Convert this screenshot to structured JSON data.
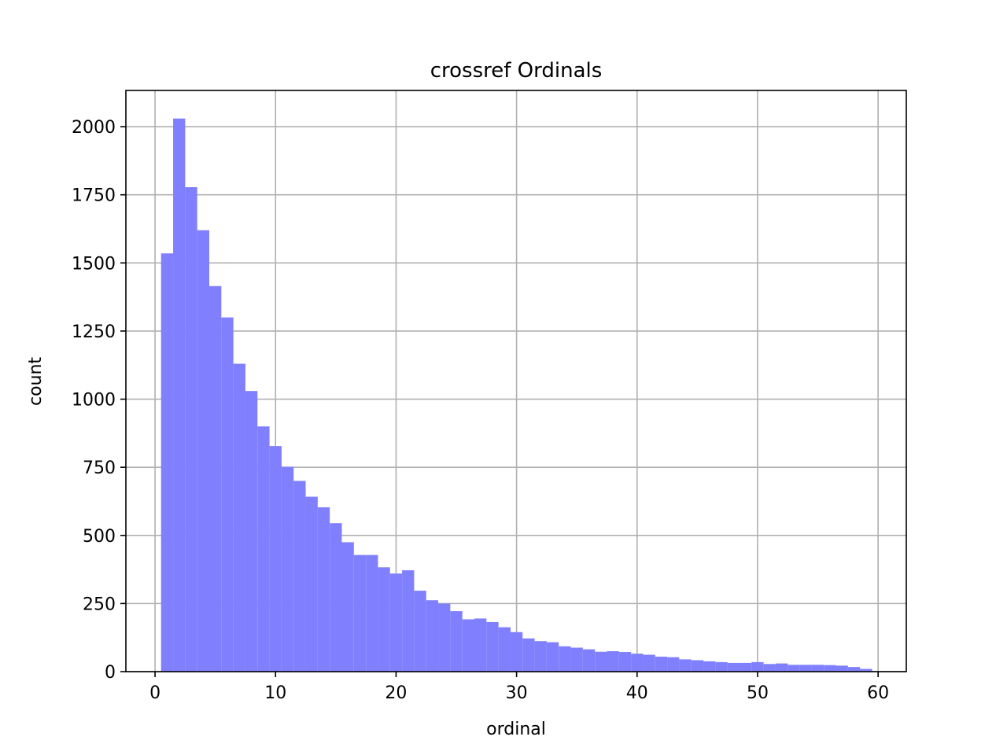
{
  "chart_data": {
    "type": "histogram",
    "title": "crossref Ordinals",
    "x_label": "ordinal",
    "y_label": "count",
    "bins": [
      0.5,
      1.5,
      2.5,
      3.5,
      4.5,
      5.5,
      6.5,
      7.5,
      8.5,
      9.5,
      10.5,
      11.5,
      12.5,
      13.5,
      14.5,
      15.5,
      16.5,
      17.5,
      18.5,
      19.5,
      20.5,
      21.5,
      22.5,
      23.5,
      24.5,
      25.5,
      26.5,
      27.5,
      28.5,
      29.5,
      30.5,
      31.5,
      32.5,
      33.5,
      34.5,
      35.5,
      36.5,
      37.5,
      38.5,
      39.5,
      40.5,
      41.5,
      42.5,
      43.5,
      44.5,
      45.5,
      46.5,
      47.5,
      48.5,
      49.5,
      50.5,
      51.5,
      52.5,
      53.5,
      54.5,
      55.5,
      56.5,
      57.5,
      58.5,
      59.5
    ],
    "values": [
      1535,
      2030,
      1778,
      1620,
      1415,
      1300,
      1130,
      1030,
      900,
      828,
      752,
      700,
      642,
      603,
      545,
      475,
      428,
      428,
      383,
      360,
      372,
      297,
      262,
      250,
      222,
      192,
      195,
      182,
      163,
      145,
      122,
      112,
      108,
      93,
      88,
      82,
      73,
      75,
      72,
      66,
      62,
      55,
      53,
      45,
      42,
      38,
      35,
      32,
      32,
      35,
      28,
      30,
      25,
      25,
      25,
      24,
      22,
      17,
      10
    ],
    "color": "#8080ff",
    "xlim": [
      -2.42,
      62.34
    ],
    "ylim": [
      0,
      2133
    ],
    "xticks": [
      0,
      10,
      20,
      30,
      40,
      50,
      60
    ],
    "yticks": [
      0,
      250,
      500,
      750,
      1000,
      1250,
      1500,
      1750,
      2000
    ],
    "grid": true
  }
}
